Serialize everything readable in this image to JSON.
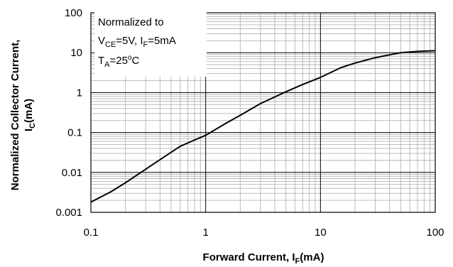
{
  "chart_data": {
    "type": "line",
    "xscale": "log",
    "yscale": "log",
    "xlim": [
      0.1,
      100
    ],
    "ylim": [
      0.001,
      100
    ],
    "x_ticks": [
      "0.1",
      "1",
      "10",
      "100"
    ],
    "y_ticks": [
      "0.001",
      "0.01",
      "0.1",
      "1",
      "10",
      "100"
    ],
    "xlabel": {
      "main": "Forward Current, I",
      "sub": "F",
      "unit": "(mA)"
    },
    "ylabel": {
      "line1": "Normalized Collector Current,",
      "line2_main": "I",
      "line2_sub": "C",
      "line2_unit": "(mA)"
    },
    "annotation": {
      "line1": "Normalized to",
      "line2": {
        "a": "V",
        "a_sub": "CE",
        "b": "=5V, I",
        "b_sub": "F",
        "c": "=5mA"
      },
      "line3": {
        "a": "T",
        "a_sub": "A",
        "b": "=25",
        "b_sup": "o",
        "c": "C"
      }
    },
    "grid": true,
    "series": [
      {
        "x": [
          0.1,
          0.15,
          0.2,
          0.3,
          0.5,
          0.6,
          0.8,
          1,
          1.5,
          2,
          3,
          5,
          7,
          10,
          15,
          20,
          30,
          50,
          70,
          100
        ],
        "y": [
          0.0018,
          0.0033,
          0.0055,
          0.012,
          0.032,
          0.045,
          0.065,
          0.085,
          0.17,
          0.27,
          0.53,
          1.05,
          1.6,
          2.4,
          4.2,
          5.5,
          7.5,
          10,
          10.8,
          11.2
        ]
      }
    ]
  }
}
